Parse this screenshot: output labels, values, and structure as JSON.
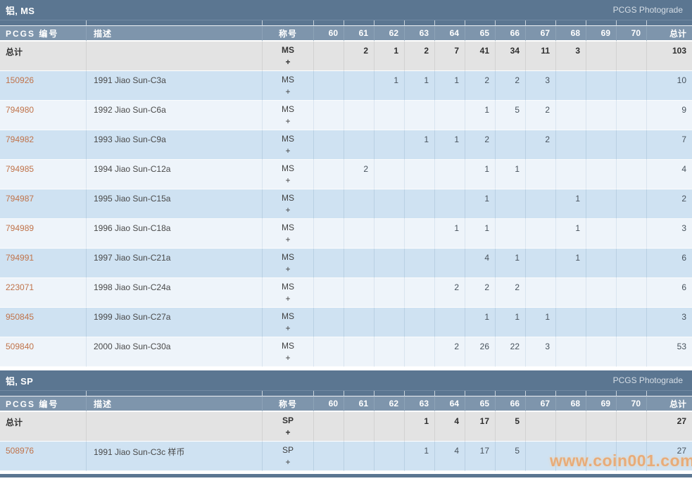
{
  "watermark": "www.coin001.com",
  "header": {
    "pcgs_number": "PCGS 编号",
    "description": "描述",
    "designation": "称号",
    "total": "总计"
  },
  "grade_columns": [
    "60",
    "61",
    "62",
    "63",
    "64",
    "65",
    "66",
    "67",
    "68",
    "69",
    "70"
  ],
  "sections": [
    {
      "title": "铝, MS",
      "brand_link": "PCGS Photograde",
      "total_row": {
        "label": "总计",
        "designation": "MS",
        "plus": "+",
        "grades": [
          "",
          "2",
          "1",
          "2",
          "7",
          "41",
          "34",
          "11",
          "3",
          "",
          ""
        ],
        "total": "103"
      },
      "rows": [
        {
          "pcgs_number": "150926",
          "description": "1991 Jiao Sun-C3a",
          "designation": "MS",
          "plus": "+",
          "grades": [
            "",
            "",
            "1",
            "1",
            "1",
            "2",
            "2",
            "3",
            "",
            "",
            ""
          ],
          "total": "10"
        },
        {
          "pcgs_number": "794980",
          "description": "1992 Jiao Sun-C6a",
          "designation": "MS",
          "plus": "+",
          "grades": [
            "",
            "",
            "",
            "",
            "",
            "1",
            "5",
            "2",
            "",
            "",
            ""
          ],
          "total": "9"
        },
        {
          "pcgs_number": "794982",
          "description": "1993 Jiao Sun-C9a",
          "designation": "MS",
          "plus": "+",
          "grades": [
            "",
            "",
            "",
            "1",
            "1",
            "2",
            "",
            "2",
            "",
            "",
            ""
          ],
          "total": "7"
        },
        {
          "pcgs_number": "794985",
          "description": "1994 Jiao Sun-C12a",
          "designation": "MS",
          "plus": "+",
          "grades": [
            "",
            "2",
            "",
            "",
            "",
            "1",
            "1",
            "",
            "",
            "",
            ""
          ],
          "total": "4"
        },
        {
          "pcgs_number": "794987",
          "description": "1995 Jiao Sun-C15a",
          "designation": "MS",
          "plus": "+",
          "grades": [
            "",
            "",
            "",
            "",
            "",
            "1",
            "",
            "",
            "1",
            "",
            ""
          ],
          "total": "2"
        },
        {
          "pcgs_number": "794989",
          "description": "1996 Jiao Sun-C18a",
          "designation": "MS",
          "plus": "+",
          "grades": [
            "",
            "",
            "",
            "",
            "1",
            "1",
            "",
            "",
            "1",
            "",
            ""
          ],
          "total": "3"
        },
        {
          "pcgs_number": "794991",
          "description": "1997 Jiao Sun-C21a",
          "designation": "MS",
          "plus": "+",
          "grades": [
            "",
            "",
            "",
            "",
            "",
            "4",
            "1",
            "",
            "1",
            "",
            ""
          ],
          "total": "6"
        },
        {
          "pcgs_number": "223071",
          "description": "1998 Jiao Sun-C24a",
          "designation": "MS",
          "plus": "+",
          "grades": [
            "",
            "",
            "",
            "",
            "2",
            "2",
            "2",
            "",
            "",
            "",
            ""
          ],
          "total": "6"
        },
        {
          "pcgs_number": "950845",
          "description": "1999 Jiao Sun-C27a",
          "designation": "MS",
          "plus": "+",
          "grades": [
            "",
            "",
            "",
            "",
            "",
            "1",
            "1",
            "1",
            "",
            "",
            ""
          ],
          "total": "3"
        },
        {
          "pcgs_number": "509840",
          "description": "2000 Jiao Sun-C30a",
          "designation": "MS",
          "plus": "+",
          "grades": [
            "",
            "",
            "",
            "",
            "2",
            "26",
            "22",
            "3",
            "",
            "",
            ""
          ],
          "total": "53"
        }
      ]
    },
    {
      "title": "铝, SP",
      "brand_link": "PCGS Photograde",
      "total_row": {
        "label": "总计",
        "designation": "SP",
        "plus": "+",
        "grades": [
          "",
          "",
          "",
          "1",
          "4",
          "17",
          "5",
          "",
          "",
          "",
          ""
        ],
        "total": "27"
      },
      "rows": [
        {
          "pcgs_number": "508976",
          "description": "1991 Jiao Sun-C3c 样币",
          "designation": "SP",
          "plus": "+",
          "grades": [
            "",
            "",
            "",
            "1",
            "4",
            "17",
            "5",
            "",
            "",
            "",
            ""
          ],
          "total": "27"
        }
      ]
    }
  ],
  "colors": {
    "title_bar": "#5b7691",
    "header_row": "#7e95ac",
    "total_row_bg": "#e3e3e3",
    "row_blue": "#cfe2f2",
    "row_light": "#eef4fa",
    "link": "#c0734a",
    "watermark": "#eba86f"
  }
}
